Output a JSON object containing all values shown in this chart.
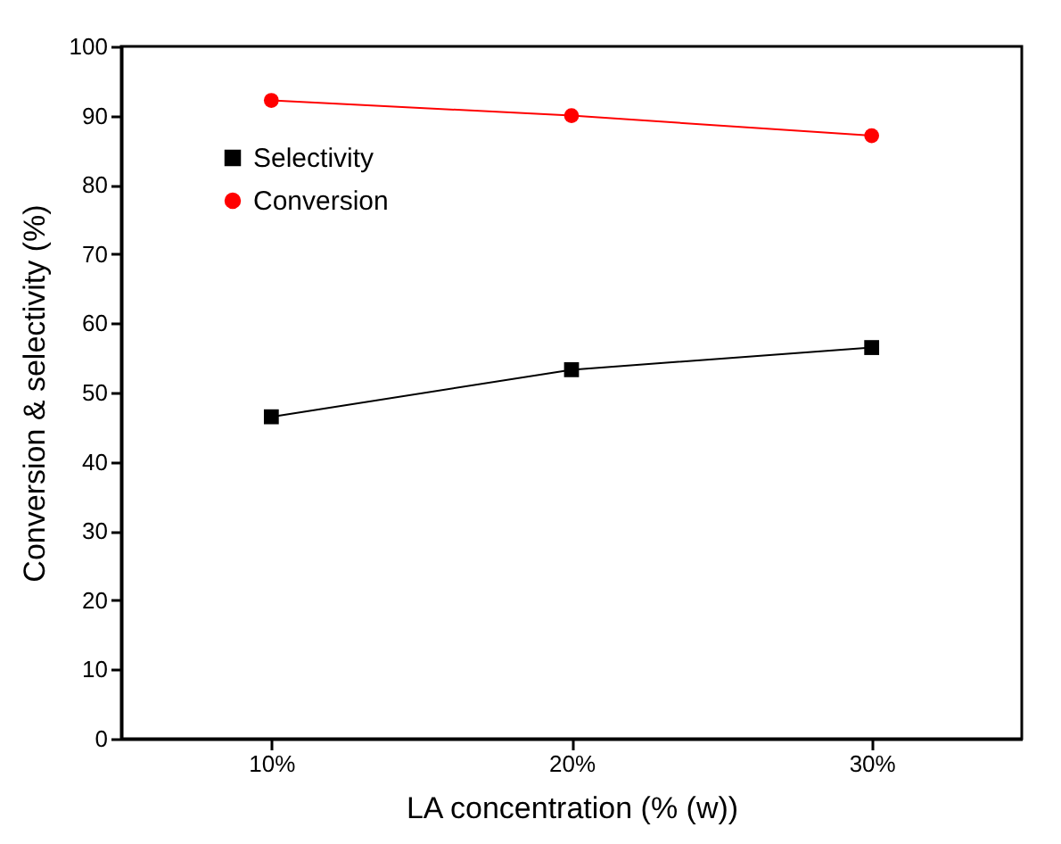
{
  "chart_data": {
    "type": "line",
    "xlabel": "LA concentration (% (w))",
    "ylabel": "Conversion & selectivity (%)",
    "categories": [
      "10%",
      "20%",
      "30%"
    ],
    "series": [
      {
        "name": "Selectivity",
        "color": "#000000",
        "marker": "square",
        "values": [
          46.5,
          53.3,
          56.5
        ]
      },
      {
        "name": "Conversion",
        "color": "#ff0000",
        "marker": "circle",
        "values": [
          92.2,
          90.0,
          87.1
        ]
      }
    ],
    "ylim": [
      0,
      100
    ],
    "yticks": [
      0,
      10,
      20,
      30,
      40,
      50,
      60,
      70,
      80,
      90,
      100
    ],
    "grid": false,
    "legend": "top left",
    "line_style": "solid"
  }
}
